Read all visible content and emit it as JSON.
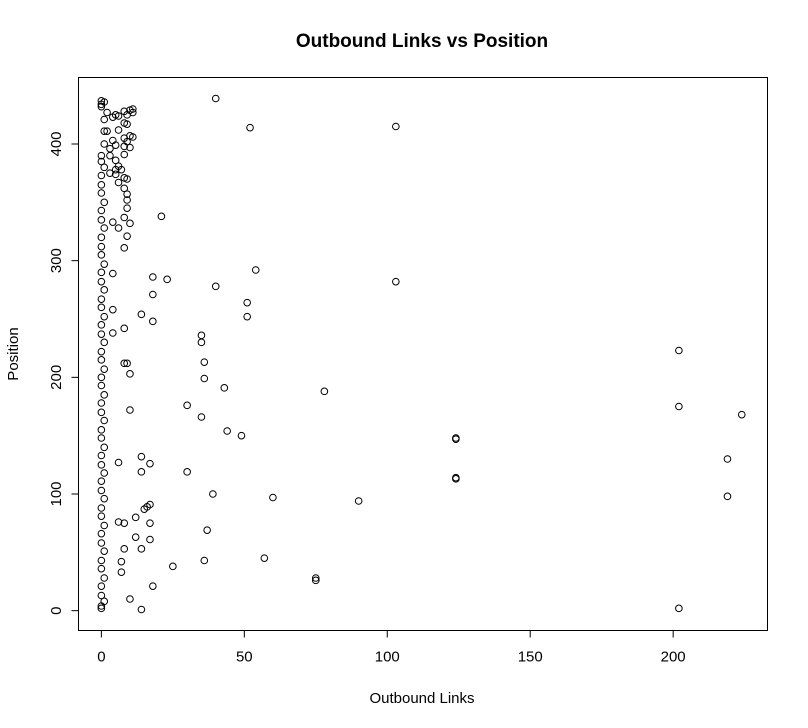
{
  "chart_data": {
    "type": "scatter",
    "title": "Outbound Links vs Position",
    "xlabel": "Outbound Links",
    "ylabel": "Position",
    "xlim": [
      -8,
      233
    ],
    "ylim": [
      -17,
      457
    ],
    "xticks": [
      0,
      50,
      100,
      150,
      200
    ],
    "yticks": [
      0,
      100,
      200,
      300,
      400
    ],
    "grid": false,
    "legend": "none",
    "marker_color": "#000000",
    "points": [
      [
        40,
        439
      ],
      [
        52,
        414
      ],
      [
        103,
        415
      ],
      [
        21,
        338
      ],
      [
        54,
        292
      ],
      [
        23,
        284
      ],
      [
        18,
        286
      ],
      [
        40,
        278
      ],
      [
        103,
        282
      ],
      [
        18,
        271
      ],
      [
        51,
        264
      ],
      [
        51,
        252
      ],
      [
        14,
        254
      ],
      [
        18,
        248
      ],
      [
        35,
        236
      ],
      [
        35,
        230
      ],
      [
        202,
        223
      ],
      [
        36,
        213
      ],
      [
        36,
        199
      ],
      [
        43,
        191
      ],
      [
        78,
        188
      ],
      [
        30,
        176
      ],
      [
        202,
        175
      ],
      [
        224,
        168
      ],
      [
        35,
        166
      ],
      [
        44,
        154
      ],
      [
        49,
        150
      ],
      [
        124,
        148
      ],
      [
        124,
        147
      ],
      [
        14,
        132
      ],
      [
        17,
        126
      ],
      [
        219,
        130
      ],
      [
        14,
        119
      ],
      [
        30,
        119
      ],
      [
        124,
        114
      ],
      [
        124,
        113
      ],
      [
        39,
        100
      ],
      [
        60,
        97
      ],
      [
        90,
        94
      ],
      [
        219,
        98
      ],
      [
        17,
        91
      ],
      [
        15,
        87
      ],
      [
        16,
        89
      ],
      [
        12,
        80
      ],
      [
        17,
        75
      ],
      [
        37,
        69
      ],
      [
        12,
        63
      ],
      [
        17,
        61
      ],
      [
        14,
        53
      ],
      [
        57,
        45
      ],
      [
        36,
        43
      ],
      [
        25,
        38
      ],
      [
        75,
        28
      ],
      [
        75,
        26
      ],
      [
        18,
        21
      ],
      [
        10,
        10
      ],
      [
        14,
        1
      ],
      [
        202,
        2
      ],
      [
        6,
        76
      ],
      [
        8,
        75
      ],
      [
        8,
        53
      ],
      [
        7,
        42
      ],
      [
        7,
        33
      ],
      [
        6,
        127
      ],
      [
        8,
        242
      ],
      [
        8,
        212
      ],
      [
        9,
        212
      ],
      [
        10,
        203
      ],
      [
        10,
        172
      ],
      [
        4,
        258
      ],
      [
        4,
        238
      ],
      [
        4,
        289
      ],
      [
        6,
        328
      ],
      [
        8,
        311
      ],
      [
        9,
        321
      ],
      [
        10,
        332
      ],
      [
        8,
        337
      ],
      [
        9,
        345
      ],
      [
        9,
        352
      ],
      [
        9,
        357
      ],
      [
        8,
        362
      ],
      [
        8,
        371
      ],
      [
        9,
        370
      ],
      [
        4,
        333
      ],
      [
        3,
        375
      ],
      [
        5,
        378
      ],
      [
        5,
        386
      ],
      [
        6,
        381
      ],
      [
        7,
        378
      ],
      [
        3,
        390
      ],
      [
        5,
        399
      ],
      [
        8,
        391
      ],
      [
        8,
        398
      ],
      [
        9,
        402
      ],
      [
        10,
        397
      ],
      [
        10,
        407
      ],
      [
        11,
        406
      ],
      [
        8,
        405
      ],
      [
        3,
        396
      ],
      [
        4,
        423
      ],
      [
        5,
        425
      ],
      [
        6,
        424
      ],
      [
        8,
        428
      ],
      [
        9,
        425
      ],
      [
        10,
        429
      ],
      [
        11,
        430
      ],
      [
        11,
        427
      ],
      [
        8,
        418
      ],
      [
        9,
        417
      ],
      [
        6,
        412
      ],
      [
        2,
        411
      ],
      [
        2,
        427
      ],
      [
        4,
        403
      ],
      [
        5,
        374
      ],
      [
        6,
        367
      ],
      [
        0,
        437
      ],
      [
        0,
        434
      ],
      [
        0,
        432
      ],
      [
        1,
        436
      ],
      [
        1,
        421
      ],
      [
        1,
        411
      ],
      [
        1,
        400
      ],
      [
        0,
        390
      ],
      [
        0,
        385
      ],
      [
        1,
        380
      ],
      [
        0,
        373
      ],
      [
        0,
        365
      ],
      [
        0,
        358
      ],
      [
        1,
        350
      ],
      [
        0,
        343
      ],
      [
        0,
        335
      ],
      [
        1,
        328
      ],
      [
        0,
        320
      ],
      [
        0,
        312
      ],
      [
        0,
        305
      ],
      [
        1,
        297
      ],
      [
        0,
        290
      ],
      [
        0,
        282
      ],
      [
        1,
        275
      ],
      [
        0,
        267
      ],
      [
        0,
        260
      ],
      [
        1,
        252
      ],
      [
        0,
        245
      ],
      [
        0,
        237
      ],
      [
        1,
        230
      ],
      [
        0,
        222
      ],
      [
        0,
        215
      ],
      [
        1,
        207
      ],
      [
        0,
        200
      ],
      [
        0,
        193
      ],
      [
        1,
        185
      ],
      [
        0,
        178
      ],
      [
        0,
        170
      ],
      [
        1,
        163
      ],
      [
        0,
        155
      ],
      [
        0,
        148
      ],
      [
        1,
        140
      ],
      [
        0,
        133
      ],
      [
        0,
        125
      ],
      [
        1,
        118
      ],
      [
        0,
        111
      ],
      [
        0,
        103
      ],
      [
        1,
        96
      ],
      [
        0,
        88
      ],
      [
        0,
        81
      ],
      [
        1,
        73
      ],
      [
        0,
        66
      ],
      [
        0,
        58
      ],
      [
        1,
        51
      ],
      [
        0,
        43
      ],
      [
        0,
        36
      ],
      [
        1,
        28
      ],
      [
        0,
        21
      ],
      [
        0,
        13
      ],
      [
        1,
        8
      ],
      [
        0,
        4
      ],
      [
        0,
        2
      ]
    ]
  }
}
